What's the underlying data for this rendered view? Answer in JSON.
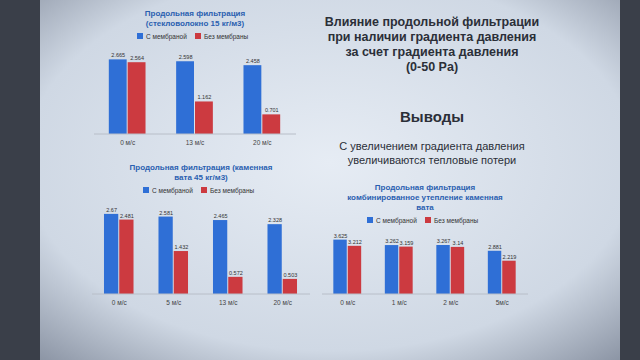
{
  "chart_data": [
    {
      "type": "bar",
      "title": "Продольная фильтрация\n(стекловолокно 15 кг/м3)",
      "categories": [
        "0 м/с",
        "13 м/с",
        "20 м/с"
      ],
      "series": [
        {
          "name": "С мембраной",
          "color": "#2f6fd6",
          "values": [
            2.665,
            2.598,
            2.458
          ]
        },
        {
          "name": "Без мембраны",
          "color": "#cc3a40",
          "values": [
            2.564,
            1.162,
            0.701
          ]
        }
      ],
      "ylim": [
        0,
        3
      ],
      "yticks": [],
      "grid": false,
      "data_labels": true,
      "tick_labels": "x",
      "legend": "top"
    },
    {
      "type": "bar",
      "title": "Продольная фильтрация (каменная\nвата 45 кг/м3)",
      "categories": [
        "0 м/с",
        "5 м/с",
        "13 м/с",
        "20 м/с"
      ],
      "series": [
        {
          "name": "С мембраной",
          "color": "#2f6fd6",
          "values": [
            2.67,
            2.581,
            2.465,
            2.328
          ]
        },
        {
          "name": "Без мембраны",
          "color": "#cc3a40",
          "values": [
            2.481,
            1.432,
            0.572,
            0.503
          ]
        }
      ],
      "ylim": [
        0,
        3
      ],
      "yticks": [],
      "grid": false,
      "data_labels": true,
      "tick_labels": "x",
      "legend": "top"
    },
    {
      "type": "bar",
      "title": "Продольная фильтрация\nкомбинированное утепление каменная\nвата",
      "categories": [
        "0 м/с",
        "1 м/с",
        "2 м/с",
        "5м/с"
      ],
      "series": [
        {
          "name": "С мембраной",
          "color": "#2f6fd6",
          "values": [
            3.625,
            3.262,
            3.267,
            2.881
          ]
        },
        {
          "name": "Без мембраны",
          "color": "#cc3a40",
          "values": [
            3.212,
            3.159,
            3.14,
            2.219
          ]
        }
      ],
      "ylim": [
        0,
        4
      ],
      "yticks": [],
      "grid": false,
      "data_labels": true,
      "tick_labels": "x",
      "legend": "top"
    }
  ],
  "text": {
    "heading": [
      "Влияние продольной фильтрации",
      "при наличии градиента давления",
      "за счет градиента давления",
      "(0-50 Pa)"
    ],
    "conclusions_title": "Выводы",
    "conclusion": [
      "С увеличением градиента давления",
      "увеличиваются тепловые потери"
    ]
  }
}
